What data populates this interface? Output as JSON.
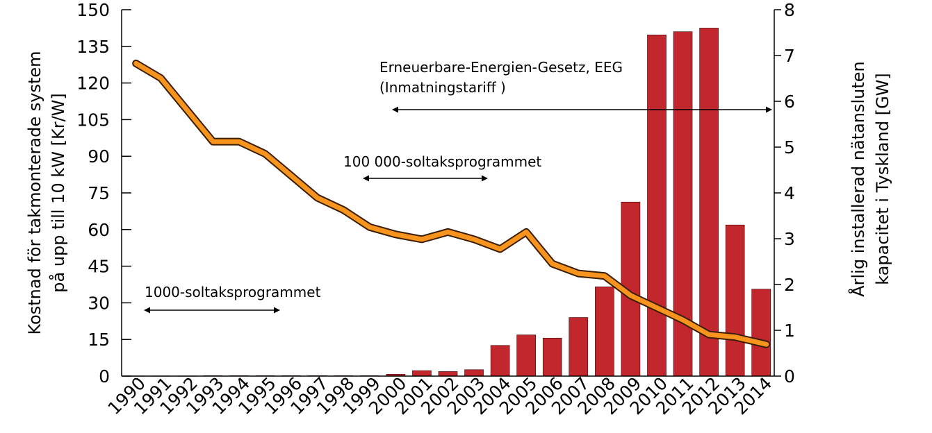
{
  "chart_data": {
    "type": "bar",
    "x": [
      "1990",
      "1991",
      "1992",
      "1993",
      "1994",
      "1995",
      "1996",
      "1997",
      "1998",
      "1999",
      "2000",
      "2001",
      "2002",
      "2003",
      "2004",
      "2005",
      "2006",
      "2007",
      "2008",
      "2009",
      "2010",
      "2011",
      "2012",
      "2013",
      "2014"
    ],
    "series": [
      {
        "kind": "bar",
        "axis": "right",
        "color": "#c1272d",
        "values": [
          0.005,
          0.005,
          0.005,
          0.01,
          0.01,
          0.01,
          0.01,
          0.01,
          0.01,
          0.01,
          0.04,
          0.12,
          0.1,
          0.14,
          0.67,
          0.9,
          0.83,
          1.28,
          1.95,
          3.8,
          7.45,
          7.52,
          7.6,
          3.3,
          1.9
        ]
      },
      {
        "kind": "line",
        "axis": "left",
        "color": "#f7941d",
        "values": [
          128,
          122,
          109,
          96,
          96,
          91,
          82,
          73,
          68,
          61,
          58,
          56,
          59,
          56,
          52,
          59,
          46,
          42,
          41,
          33,
          28,
          23,
          17,
          16,
          13
        ]
      }
    ],
    "y_left": {
      "label_line1": "Kostnad för takmonterade system",
      "label_line2": "på upp till 10 kW [Kr/W]",
      "range": [
        0,
        150
      ],
      "ticks": [
        "0",
        "15",
        "30",
        "45",
        "60",
        "75",
        "90",
        "105",
        "120",
        "135",
        "150"
      ]
    },
    "y_right": {
      "label_line1": "Årlig installerad nätansluten",
      "label_line2": "kapacitet i Tyskland [GW]",
      "range": [
        0,
        8
      ],
      "ticks": [
        "0",
        "1",
        "2",
        "3",
        "4",
        "5",
        "6",
        "7",
        "8"
      ]
    },
    "annotations": {
      "eeg_line1": "Erneuerbare-Energien-Gesetz, EEG",
      "eeg_line2": "(Inmatningstariff )",
      "program_100000": "100 000-soltaksprogrammet",
      "program_1000": "1000-soltaksprogrammet"
    },
    "grid": false
  }
}
